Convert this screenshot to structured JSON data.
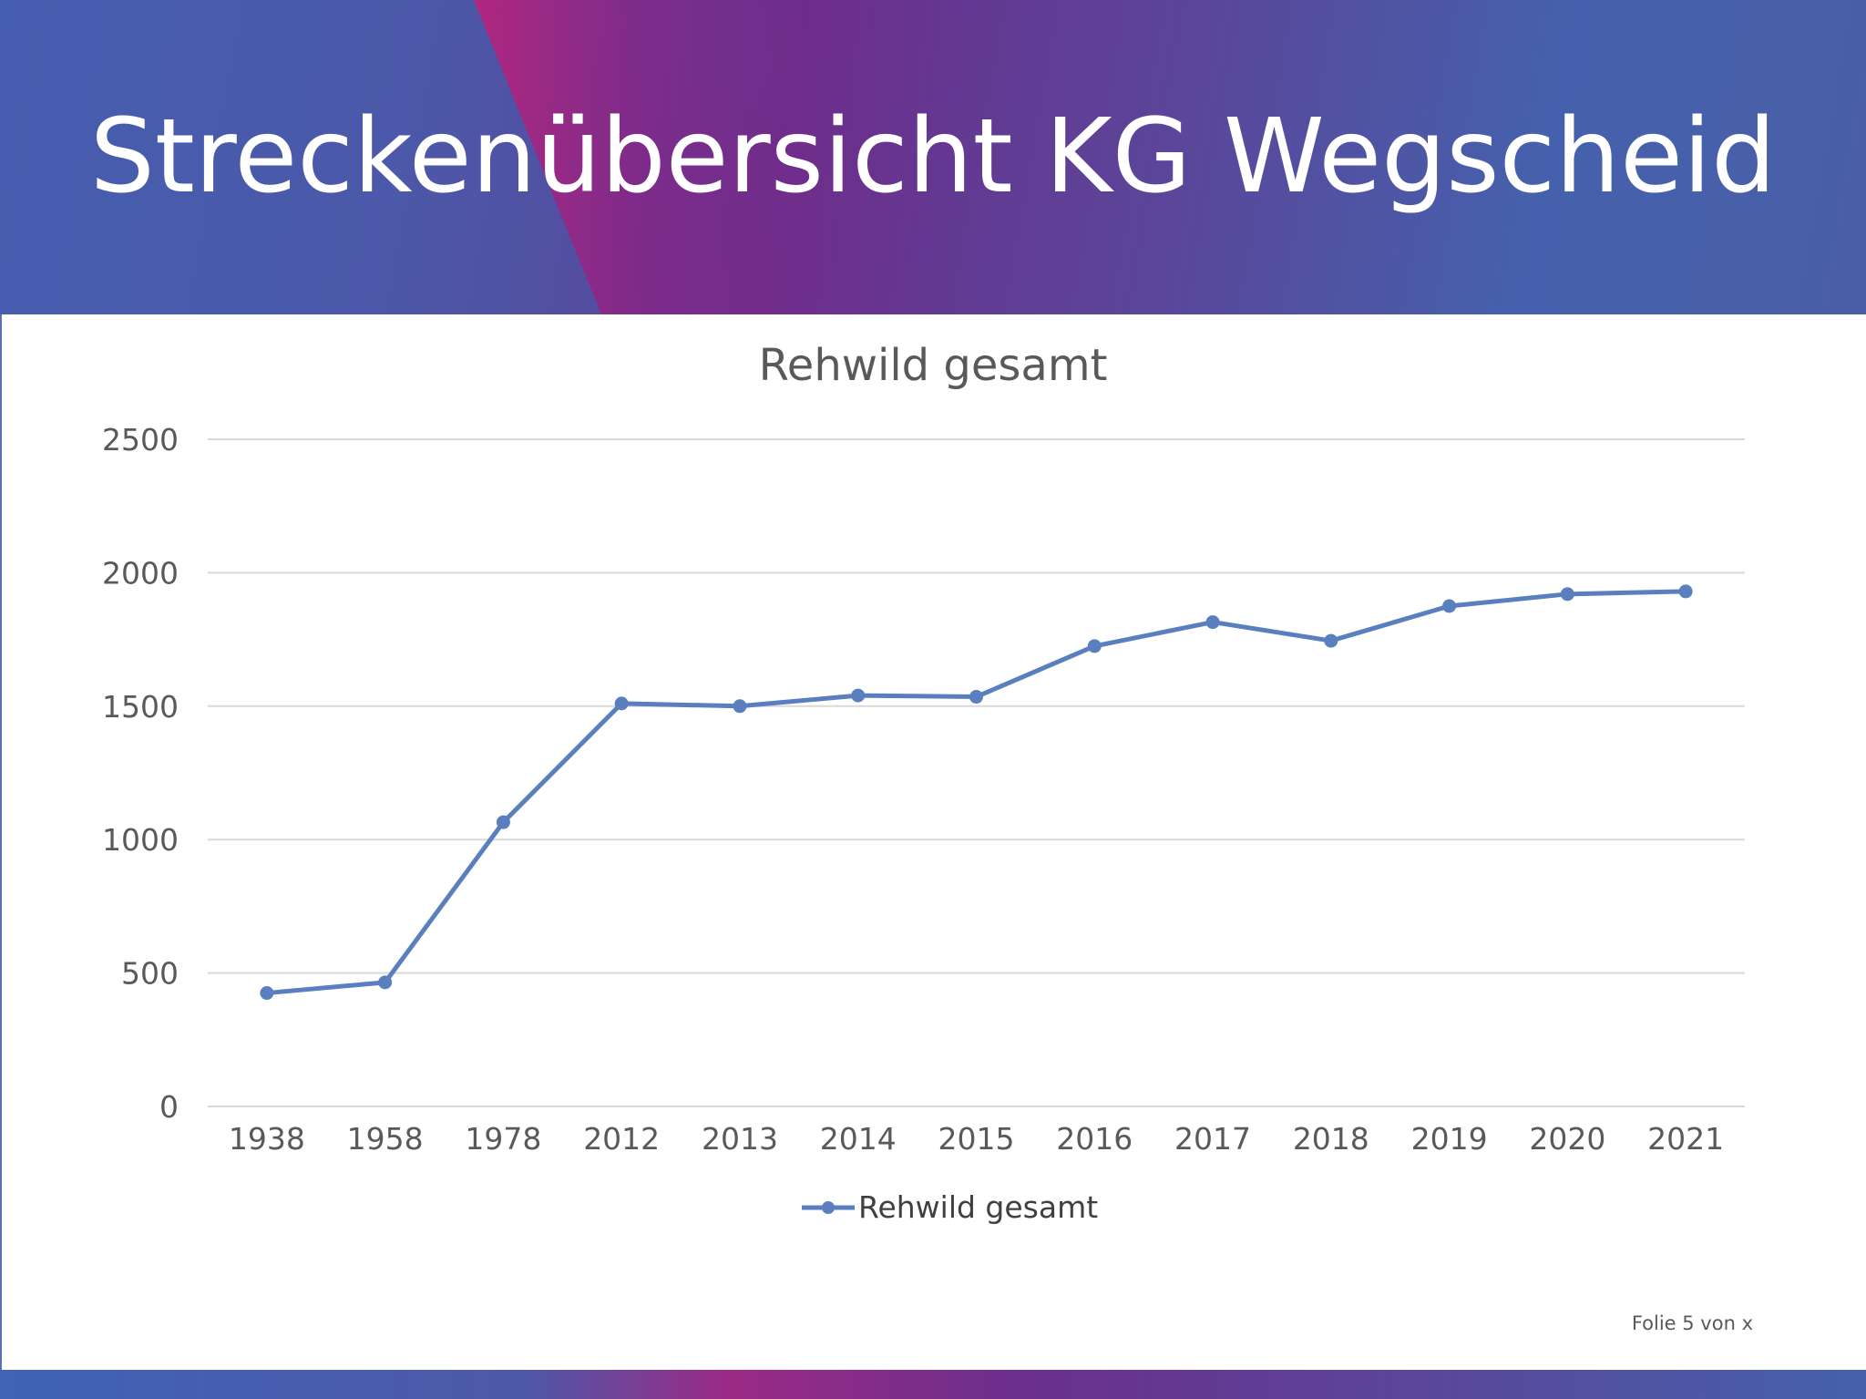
{
  "slide": {
    "title": "Streckenübersicht KG Wegscheid",
    "slide_number": "Folie 5 von x"
  },
  "colors": {
    "banner_blue": "#3f63b6",
    "banner_purple": "#6a2f8c",
    "banner_magenta": "#b0207a",
    "series": "#5a7fbf",
    "gridline": "#d9d9d9",
    "text": "#595959"
  },
  "chart_data": {
    "type": "line",
    "title": "Rehwild gesamt",
    "xlabel": "",
    "ylabel": "",
    "categories": [
      "1938",
      "1958",
      "1978",
      "2012",
      "2013",
      "2014",
      "2015",
      "2016",
      "2017",
      "2018",
      "2019",
      "2020",
      "2021"
    ],
    "series": [
      {
        "name": "Rehwild gesamt",
        "values": [
          425,
          465,
          1065,
          1510,
          1500,
          1540,
          1535,
          1725,
          1815,
          1745,
          1875,
          1920,
          1930
        ]
      }
    ],
    "ylim": [
      0,
      2500
    ],
    "yticks": [
      "0",
      "500",
      "1000",
      "1500",
      "2000",
      "2500"
    ],
    "grid": true,
    "legend": "bottom"
  }
}
